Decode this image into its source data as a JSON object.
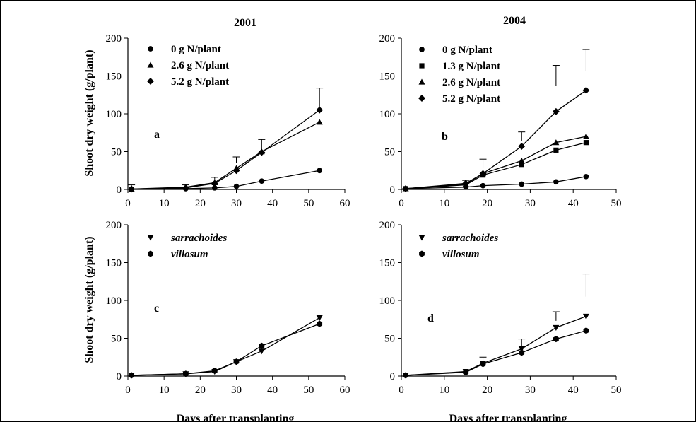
{
  "figure": {
    "col_titles": [
      "2001",
      "2004"
    ],
    "ylabel": "Shoot dry weight (g/plant)",
    "xlabel": "Days after transplanting"
  },
  "chart_data": [
    {
      "type": "line",
      "panel_label": "a",
      "title": "2001",
      "xlim": [
        0,
        60
      ],
      "ylim": [
        0,
        200
      ],
      "xticks": [
        0,
        10,
        20,
        30,
        40,
        50,
        60
      ],
      "yticks": [
        0,
        50,
        100,
        150,
        200
      ],
      "legend": "top-left",
      "series": [
        {
          "name": "0 g N/plant",
          "marker": "circle",
          "x": [
            1,
            16,
            24,
            30,
            37,
            53
          ],
          "y": [
            0.5,
            1,
            2,
            4,
            11,
            25
          ]
        },
        {
          "name": "2.6 g N/plant",
          "marker": "triangle",
          "x": [
            1,
            16,
            24,
            30,
            37,
            53
          ],
          "y": [
            0.5,
            3,
            9,
            28,
            50,
            89
          ]
        },
        {
          "name": "5.2 g N/plant",
          "marker": "diamond",
          "x": [
            1,
            16,
            24,
            30,
            37,
            53
          ],
          "y": [
            0.5,
            2,
            8,
            25,
            49,
            105
          ]
        }
      ],
      "error_bars": [
        {
          "x": 1,
          "low": 0,
          "high": 6
        },
        {
          "x": 16,
          "low": 0,
          "high": 6
        },
        {
          "x": 24,
          "low": 8,
          "high": 16
        },
        {
          "x": 30,
          "low": 35,
          "high": 43
        },
        {
          "x": 37,
          "low": 50,
          "high": 66
        },
        {
          "x": 53,
          "low": 105,
          "high": 134
        }
      ]
    },
    {
      "type": "line",
      "panel_label": "b",
      "title": "2004",
      "xlim": [
        0,
        50
      ],
      "ylim": [
        0,
        200
      ],
      "xticks": [
        0,
        10,
        20,
        30,
        40,
        50
      ],
      "yticks": [
        0,
        50,
        100,
        150,
        200
      ],
      "legend": "top-left",
      "series": [
        {
          "name": "0 g N/plant",
          "marker": "circle",
          "x": [
            1,
            15,
            19,
            28,
            36,
            43
          ],
          "y": [
            1,
            3,
            5,
            7,
            10,
            17
          ]
        },
        {
          "name": "1.3 g N/plant",
          "marker": "square",
          "x": [
            1,
            15,
            19,
            28,
            36,
            43
          ],
          "y": [
            1,
            6,
            19,
            33,
            52,
            62
          ]
        },
        {
          "name": "2.6 g N/plant",
          "marker": "triangle",
          "x": [
            1,
            15,
            19,
            28,
            36,
            43
          ],
          "y": [
            1,
            7,
            21,
            38,
            62,
            70
          ]
        },
        {
          "name": "5.2 g N/plant",
          "marker": "diamond",
          "x": [
            1,
            15,
            19,
            28,
            36,
            43
          ],
          "y": [
            1,
            8,
            21,
            57,
            103,
            131
          ]
        }
      ],
      "error_bars": [
        {
          "x": 15,
          "low": 7,
          "high": 12
        },
        {
          "x": 19,
          "low": 29,
          "high": 40
        },
        {
          "x": 28,
          "low": 64,
          "high": 76
        },
        {
          "x": 36,
          "low": 137,
          "high": 164
        },
        {
          "x": 43,
          "low": 157,
          "high": 185
        }
      ]
    },
    {
      "type": "line",
      "panel_label": "c",
      "xlim": [
        0,
        60
      ],
      "ylim": [
        0,
        200
      ],
      "xticks": [
        0,
        10,
        20,
        30,
        40,
        50,
        60
      ],
      "yticks": [
        0,
        50,
        100,
        150,
        200
      ],
      "xlabel": "Days after transplanting",
      "legend": "top-left",
      "series": [
        {
          "name": "sarrachoides",
          "marker": "triangle-down",
          "x": [
            1,
            16,
            24,
            30,
            37,
            53
          ],
          "y": [
            1,
            3,
            6,
            19,
            33,
            77
          ]
        },
        {
          "name": "villosum",
          "marker": "hexagon",
          "x": [
            1,
            16,
            24,
            30,
            37,
            53
          ],
          "y": [
            1,
            3,
            7,
            19,
            40,
            69
          ]
        }
      ],
      "error_bars": []
    },
    {
      "type": "line",
      "panel_label": "d",
      "xlim": [
        0,
        50
      ],
      "ylim": [
        0,
        200
      ],
      "xticks": [
        0,
        10,
        20,
        30,
        40,
        50
      ],
      "yticks": [
        0,
        50,
        100,
        150,
        200
      ],
      "xlabel": "Days after transplanting",
      "legend": "top-left",
      "series": [
        {
          "name": "sarrachoides",
          "marker": "triangle-down",
          "x": [
            1,
            15,
            19,
            28,
            36,
            43
          ],
          "y": [
            1,
            6,
            17,
            36,
            64,
            79
          ]
        },
        {
          "name": "villosum",
          "marker": "hexagon",
          "x": [
            1,
            15,
            19,
            28,
            36,
            43
          ],
          "y": [
            1,
            5,
            16,
            31,
            49,
            60
          ]
        }
      ],
      "error_bars": [
        {
          "x": 19,
          "low": 17,
          "high": 25
        },
        {
          "x": 28,
          "low": 38,
          "high": 49
        },
        {
          "x": 36,
          "low": 73,
          "high": 85
        },
        {
          "x": 43,
          "low": 105,
          "high": 135
        }
      ]
    }
  ]
}
